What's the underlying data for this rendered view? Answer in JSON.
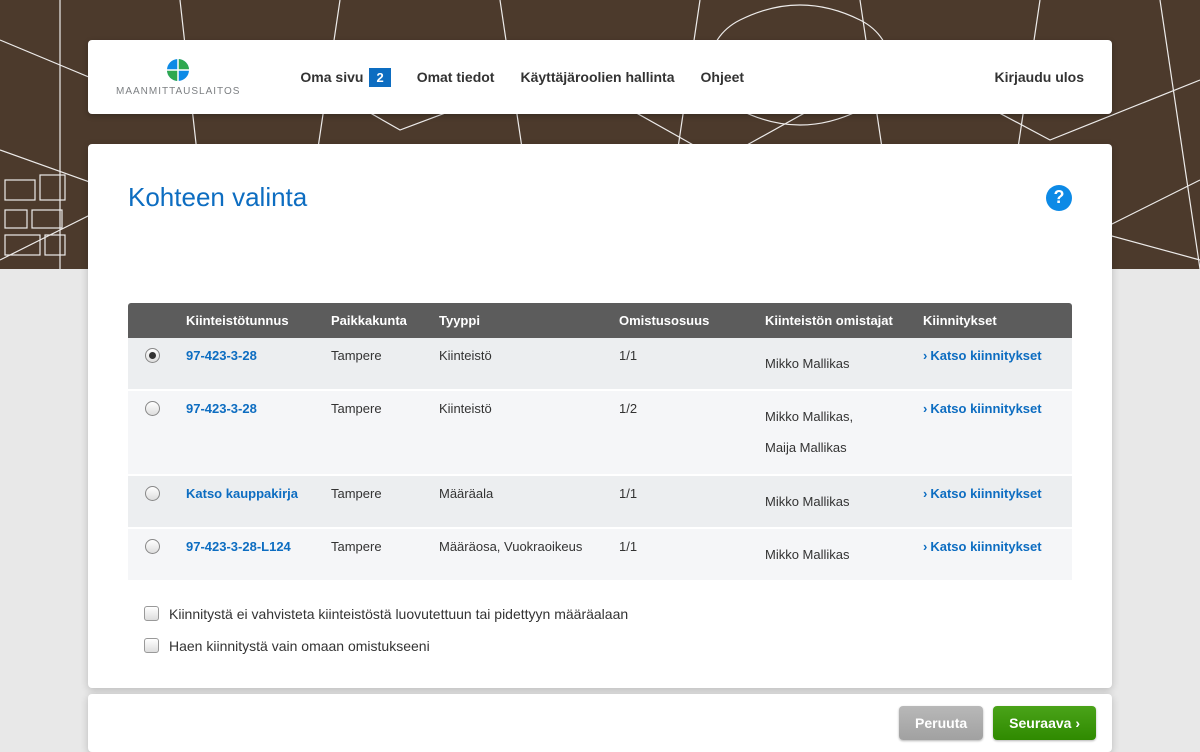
{
  "brand": {
    "name": "MAANMITTAUSLAITOS"
  },
  "nav": {
    "items": [
      {
        "label": "Oma sivu",
        "badge": "2"
      },
      {
        "label": "Omat tiedot"
      },
      {
        "label": "Käyttäjäroolien hallinta"
      },
      {
        "label": "Ohjeet"
      }
    ],
    "logout": "Kirjaudu ulos"
  },
  "page": {
    "title": "Kohteen valinta"
  },
  "table": {
    "headers": {
      "id": "Kiinteistötunnus",
      "place": "Paikkakunta",
      "type": "Tyyppi",
      "share": "Omistusosuus",
      "owners": "Kiinteistön omistajat",
      "mortgages": "Kiinnitykset"
    },
    "action_label": "Katso kiinnitykset",
    "rows": [
      {
        "selected": true,
        "id": "97-423-3-28",
        "place": "Tampere",
        "type": "Kiinteistö",
        "share": "1/1",
        "owners": [
          "Mikko Mallikas"
        ]
      },
      {
        "selected": false,
        "id": "97-423-3-28",
        "place": "Tampere",
        "type": "Kiinteistö",
        "share": "1/2",
        "owners": [
          "Mikko Mallikas,",
          "Maija Mallikas"
        ]
      },
      {
        "selected": false,
        "id": "Katso kauppakirja",
        "place": "Tampere",
        "type": "Määräala",
        "share": "1/1",
        "owners": [
          "Mikko Mallikas"
        ]
      },
      {
        "selected": false,
        "id": "97-423-3-28-L124",
        "place": "Tampere",
        "type": "Määräosa, Vuokraoikeus",
        "share": "1/1",
        "owners": [
          "Mikko Mallikas"
        ]
      }
    ]
  },
  "checkboxes": {
    "opt1": "Kiinnitystä ei vahvisteta kiinteistöstä luovutettuun tai pidettyyn määräalaan",
    "opt2": "Haen kiinnitystä vain omaan omistukseeni"
  },
  "buttons": {
    "cancel": "Peruuta",
    "next": "Seuraava ›"
  },
  "colors": {
    "accent": "#0d6dc1",
    "primary_action": "#3a9707",
    "header_bg": "#5c5c5c",
    "map_bg": "#4c3a2c"
  }
}
